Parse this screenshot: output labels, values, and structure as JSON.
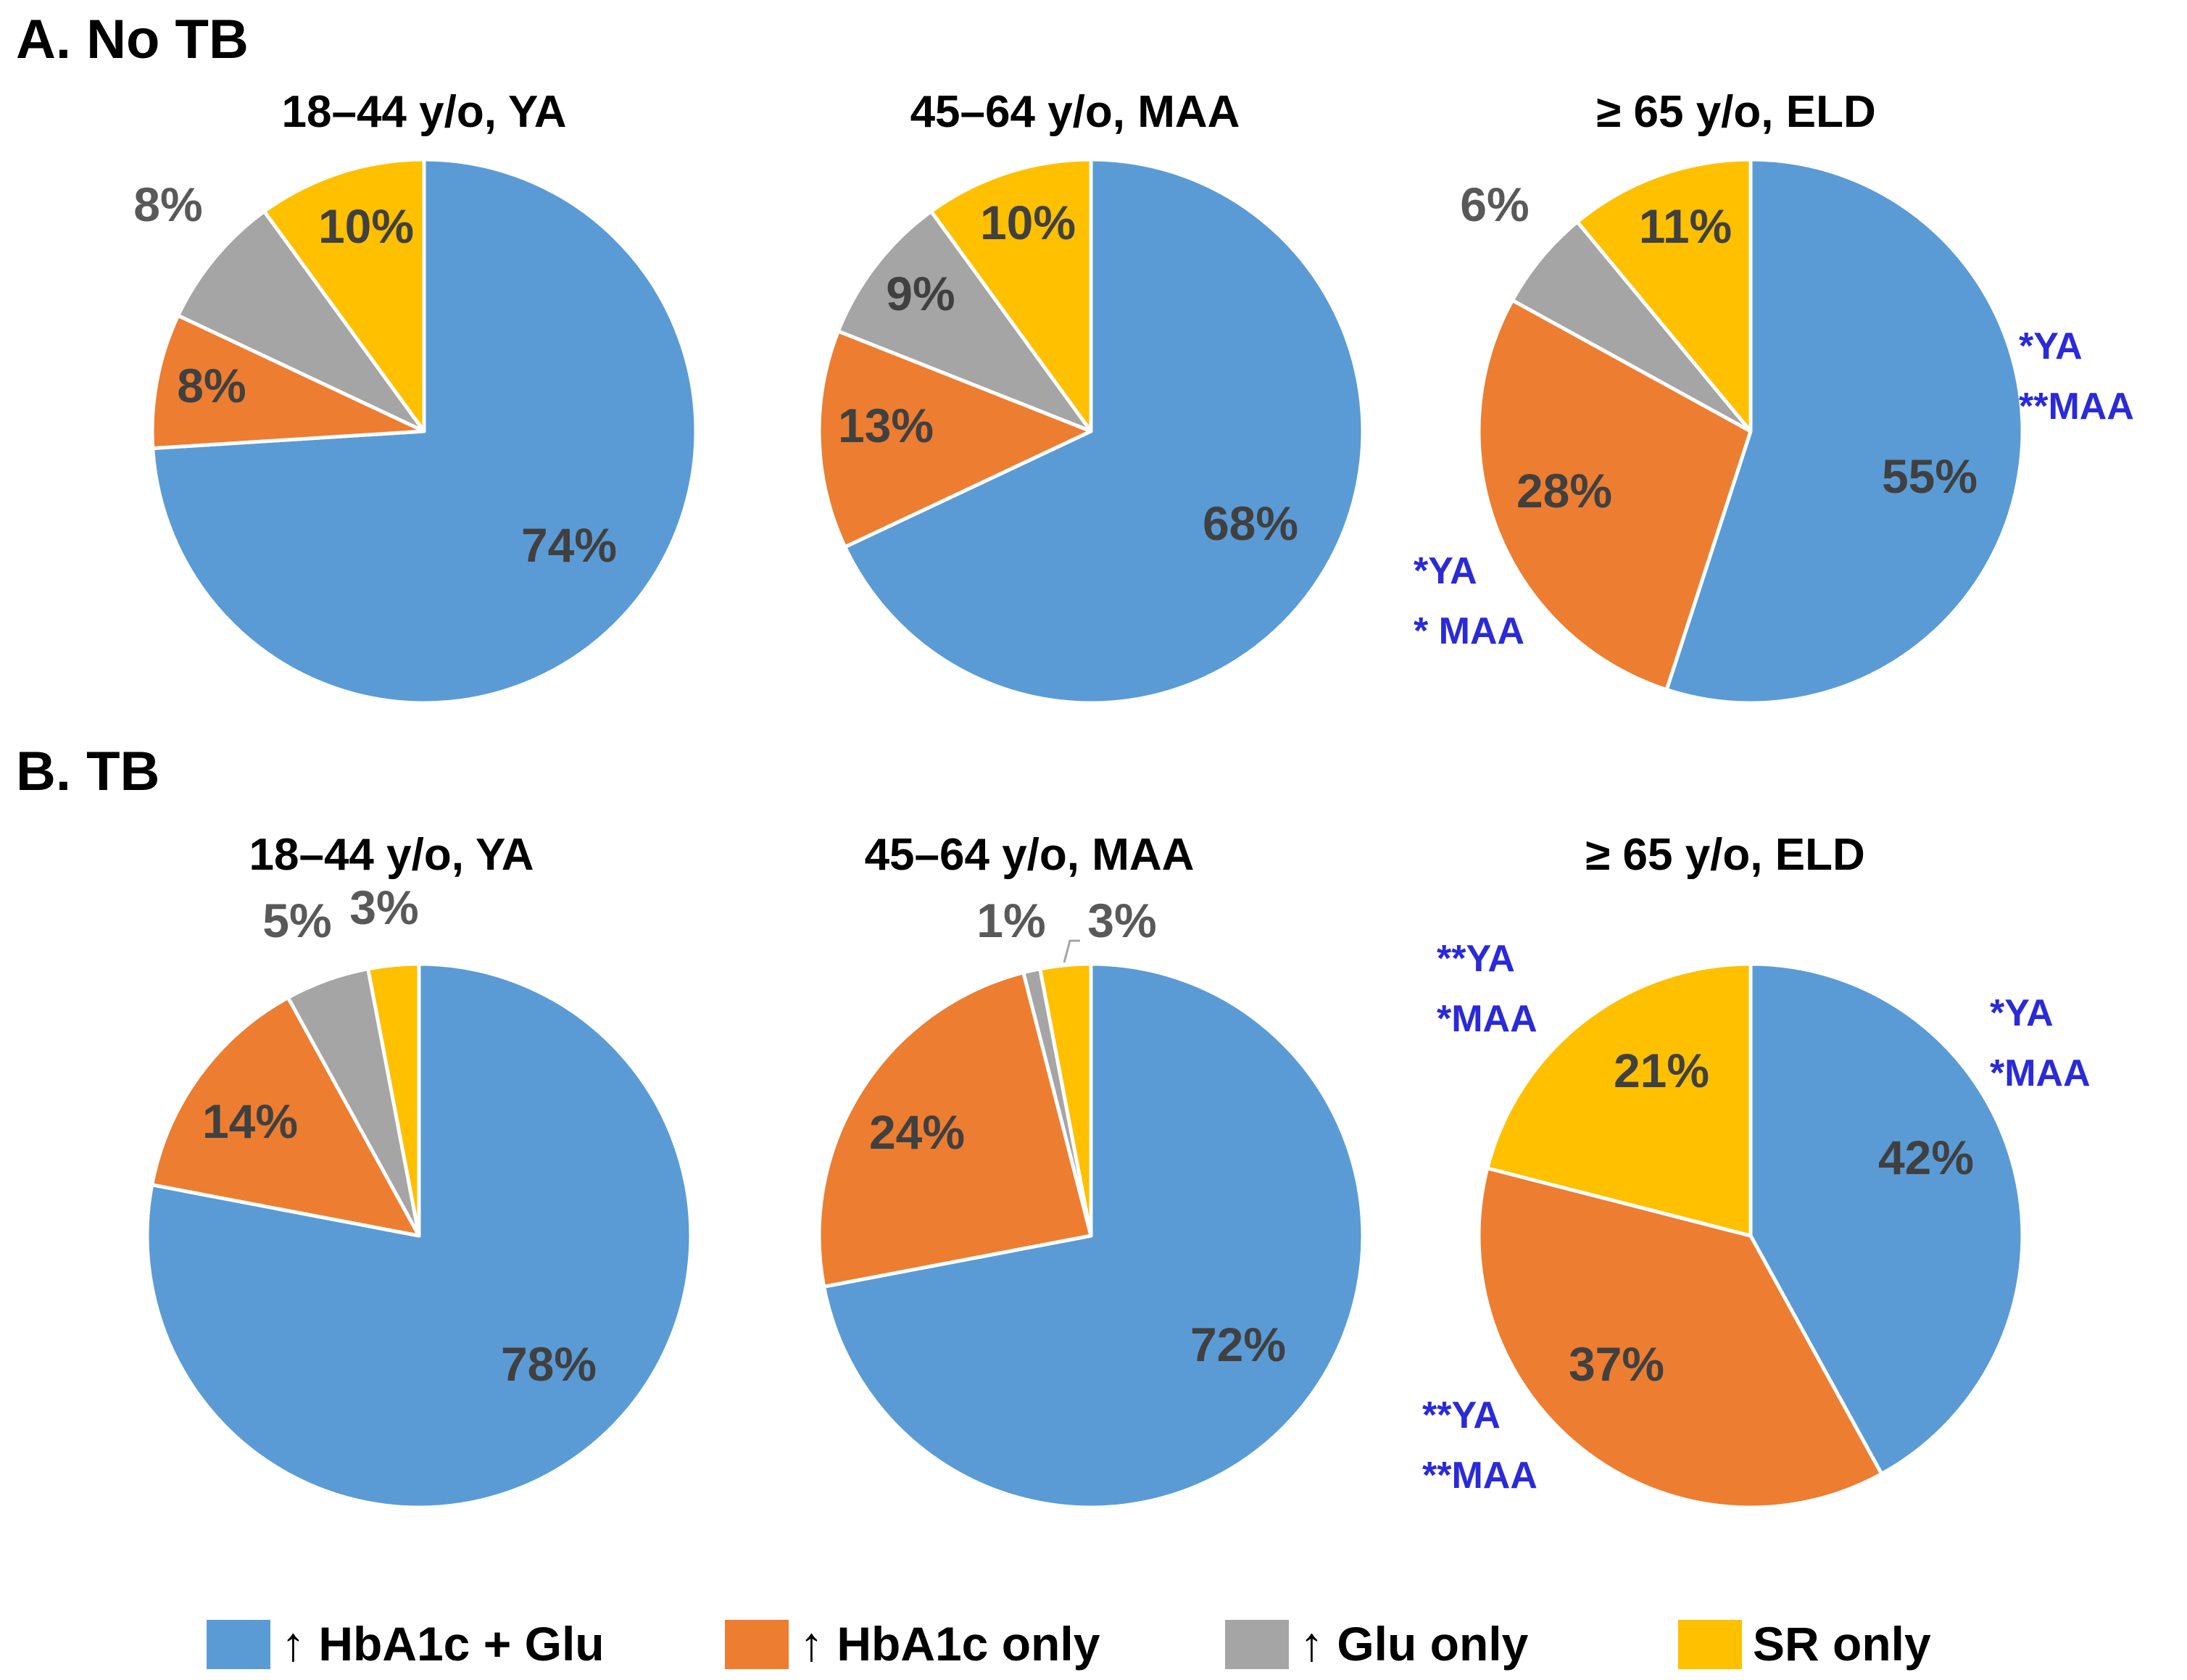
{
  "chart_data": [
    {
      "type": "pie",
      "panel": "A",
      "section_title": "A.  No TB",
      "title": "18–44 y/o, YA",
      "slices": [
        {
          "label": "↑ HbA1c + Glu",
          "value": 74,
          "text": "74%",
          "sig": []
        },
        {
          "label": "↑ HbA1c only",
          "value": 8,
          "text": "8%",
          "sig": []
        },
        {
          "label": "↑ Glu only",
          "value": 8,
          "text": "8%",
          "sig": []
        },
        {
          "label": "SR only",
          "value": 10,
          "text": "10%",
          "sig": []
        }
      ]
    },
    {
      "type": "pie",
      "panel": "A",
      "title": "45–64 y/o, MAA",
      "slices": [
        {
          "label": "↑ HbA1c + Glu",
          "value": 68,
          "text": "68%",
          "sig": []
        },
        {
          "label": "↑ HbA1c only",
          "value": 13,
          "text": "13%",
          "sig": []
        },
        {
          "label": "↑ Glu only",
          "value": 9,
          "text": "9%",
          "sig": []
        },
        {
          "label": "SR only",
          "value": 10,
          "text": "10%",
          "sig": []
        }
      ]
    },
    {
      "type": "pie",
      "panel": "A",
      "title": "≥ 65 y/o, ELD",
      "slices": [
        {
          "label": "↑ HbA1c + Glu",
          "value": 55,
          "text": "55%",
          "sig": [
            "*YA",
            "**MAA"
          ]
        },
        {
          "label": "↑ HbA1c only",
          "value": 28,
          "text": "28%",
          "sig": [
            "*YA",
            "* MAA"
          ]
        },
        {
          "label": "↑ Glu only",
          "value": 6,
          "text": "6%",
          "sig": []
        },
        {
          "label": "SR only",
          "value": 11,
          "text": "11%",
          "sig": []
        }
      ]
    },
    {
      "type": "pie",
      "panel": "B",
      "section_title": "B.  TB",
      "title": "18–44 y/o, YA",
      "slices": [
        {
          "label": "↑ HbA1c + Glu",
          "value": 78,
          "text": "78%",
          "sig": []
        },
        {
          "label": "↑ HbA1c only",
          "value": 14,
          "text": "14%",
          "sig": []
        },
        {
          "label": "↑ Glu only",
          "value": 5,
          "text": "5%",
          "sig": []
        },
        {
          "label": "SR only",
          "value": 3,
          "text": "3%",
          "sig": []
        }
      ]
    },
    {
      "type": "pie",
      "panel": "B",
      "title": "45–64 y/o, MAA",
      "slices": [
        {
          "label": "↑ HbA1c + Glu",
          "value": 72,
          "text": "72%",
          "sig": []
        },
        {
          "label": "↑ HbA1c only",
          "value": 24,
          "text": "24%",
          "sig": []
        },
        {
          "label": "↑ Glu only",
          "value": 1,
          "text": "1%",
          "sig": []
        },
        {
          "label": "SR only",
          "value": 3,
          "text": "3%",
          "sig": []
        }
      ]
    },
    {
      "type": "pie",
      "panel": "B",
      "title": "≥ 65 y/o, ELD",
      "slices": [
        {
          "label": "↑ HbA1c + Glu",
          "value": 42,
          "text": "42%",
          "sig": [
            "*YA",
            "*MAA"
          ]
        },
        {
          "label": "↑ HbA1c only",
          "value": 37,
          "text": "37%",
          "sig": [
            "**YA",
            "**MAA"
          ]
        },
        {
          "label": "↑ Glu only",
          "value": 0,
          "text": "",
          "sig": []
        },
        {
          "label": "SR only",
          "value": 21,
          "text": "21%",
          "sig": [
            "**YA",
            "*MAA"
          ]
        }
      ]
    }
  ],
  "legend": [
    {
      "label": "↑ HbA1c + Glu",
      "color": "#5b9bd5"
    },
    {
      "label": "↑ HbA1c only",
      "color": "#ed7d31"
    },
    {
      "label": "↑ Glu only",
      "color": "#a5a5a5"
    },
    {
      "label": "SR only",
      "color": "#ffc000"
    }
  ],
  "colors": {
    "slices": [
      "#5b9bd5",
      "#ed7d31",
      "#a5a5a5",
      "#ffc000"
    ],
    "inside_label": "#404040",
    "outside_label": "#595959",
    "significance": "#2a2ad8"
  }
}
